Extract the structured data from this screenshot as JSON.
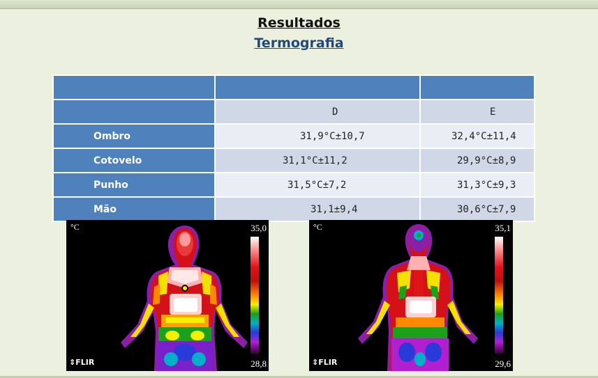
{
  "header": {
    "title": "Resultados",
    "subtitle": "Termografia"
  },
  "table": {
    "columns": [
      "",
      "D",
      "E"
    ],
    "rows": [
      {
        "label": "Ombro",
        "d": "31,9°C±10,7",
        "e": "32,4°C±11,4"
      },
      {
        "label": "Cotovelo",
        "d": "31,1°C±11,2",
        "e": "29,9°C±8,9"
      },
      {
        "label": "Punho",
        "d": "31,5°C±7,2",
        "e": "31,3°C±9,3"
      },
      {
        "label": "Mão",
        "d": "31,1±9,4",
        "e": "30,6°C±7,9"
      }
    ]
  },
  "thermograms": [
    {
      "unit": "°C",
      "max": "35,0",
      "min": "28,8",
      "logo": "FLIR"
    },
    {
      "unit": "°C",
      "max": "35,1",
      "min": "29,6",
      "logo": "FLIR"
    }
  ]
}
